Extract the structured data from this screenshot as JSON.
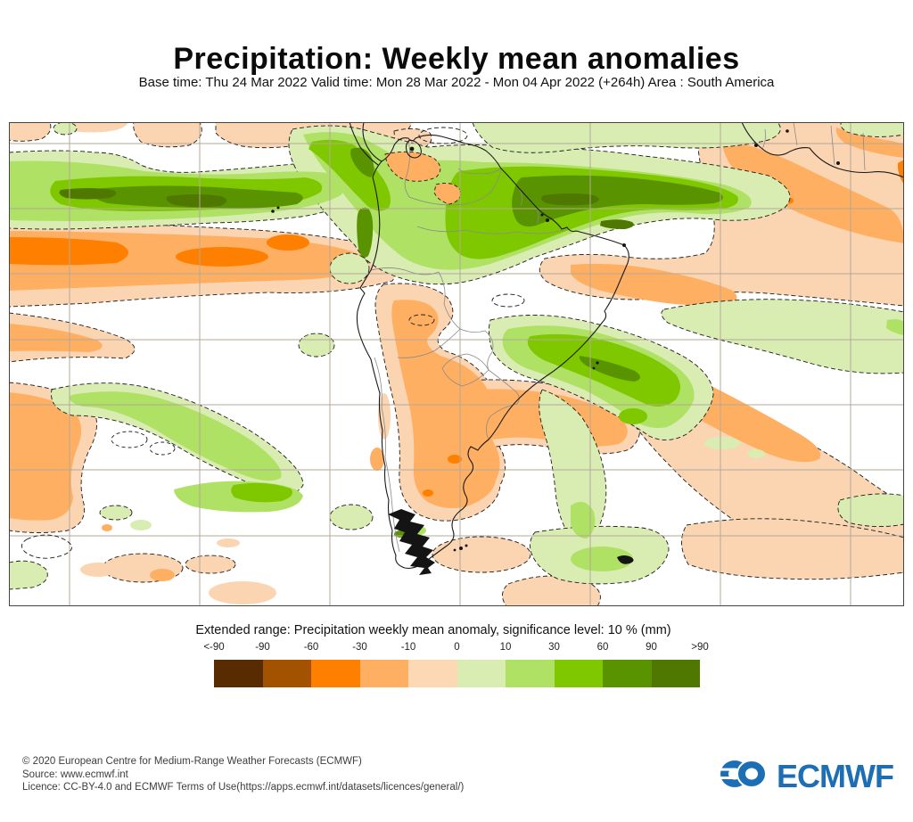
{
  "header": {
    "title": "Precipitation: Weekly mean anomalies",
    "subtitle": "Base time: Thu 24 Mar 2022 Valid time: Mon 28 Mar 2022 - Mon 04 Apr 2022 (+264h) Area : South America"
  },
  "legend": {
    "title": "Extended range: Precipitation weekly mean anomaly, significance level: 10 % (mm)",
    "tick_labels": [
      "<-90",
      "-90",
      "-60",
      "-30",
      "-10",
      "0",
      "10",
      "30",
      "60",
      "90",
      ">90"
    ],
    "colors": [
      "#582C00",
      "#A35200",
      "#FF8000",
      "#FFAF62",
      "#FCD8B5",
      "#D9EDB2",
      "#AFE164",
      "#7FC800",
      "#599400",
      "#4F7800"
    ]
  },
  "footer": {
    "line1": "© 2020 European Centre for Medium-Range Weather Forecasts (ECMWF)",
    "line2": "Source: www.ecmwf.int",
    "line3": "Licence: CC-BY-4.0 and ECMWF Terms of Use(https://apps.ecmwf.int/datasets/licences/general/)",
    "logo_text": "ECMWF",
    "logo_color": "#1C6FB4",
    "logo_icon": "ecmwf-interlocking-rings-icon"
  },
  "chart_data": {
    "type": "heatmap",
    "subtype": "filled-contour-anomaly-map",
    "title": "Precipitation: Weekly mean anomalies",
    "variable": "Precipitation weekly mean anomaly",
    "units": "mm",
    "significance_level": "10 %",
    "base_time": "Thu 24 Mar 2022",
    "valid_time": "Mon 28 Mar 2022 - Mon 04 Apr 2022",
    "lead_time": "+264h",
    "area": "South America",
    "scale_breaks_mm": [
      -90,
      -60,
      -30,
      -10,
      0,
      10,
      30,
      60,
      90
    ],
    "scale_colors": [
      "#582C00",
      "#A35200",
      "#FF8000",
      "#FFAF62",
      "#FCD8B5",
      "#D9EDB2",
      "#AFE164",
      "#7FC800",
      "#599400",
      "#4F7800"
    ],
    "contour_style": "dashed black contours mark the 10 % significance (±10 mm) boundaries",
    "grid": "lat-lon graticule, light grey lines",
    "features": [
      {
        "region": "equatorial eastern Pacific (ITCZ band, west of Ecuador)",
        "anomaly_mm": "+30 to >+90",
        "sign": "positive"
      },
      {
        "region": "equatorial Atlantic / mouths of the Amazon and Guianas coast",
        "anomaly_mm": "+30 to >+90",
        "sign": "positive"
      },
      {
        "region": "eastern tropical Pacific just south of the ITCZ",
        "anomaly_mm": "-10 to -60",
        "sign": "negative"
      },
      {
        "region": "Colombia and Ecuadorian Andes",
        "anomaly_mm": "+10 to +60",
        "sign": "positive"
      },
      {
        "region": "Paraguay, northern Argentina, Uruguay and western South Atlantic",
        "anomaly_mm": "-10 to -30",
        "sign": "negative"
      },
      {
        "region": "southeastern Brazil coast",
        "anomaly_mm": "+10 to +30",
        "sign": "positive"
      },
      {
        "region": "south-central Pacific (diagonal band)",
        "anomaly_mm": "+10 to +30",
        "sign": "positive"
      },
      {
        "region": "tropical Atlantic near the West African coast",
        "anomaly_mm": "-10 to -30",
        "sign": "negative"
      },
      {
        "region": "subtropical South Atlantic (diagonal bands)",
        "anomaly_mm": "-10 to -30",
        "sign": "negative"
      }
    ]
  }
}
